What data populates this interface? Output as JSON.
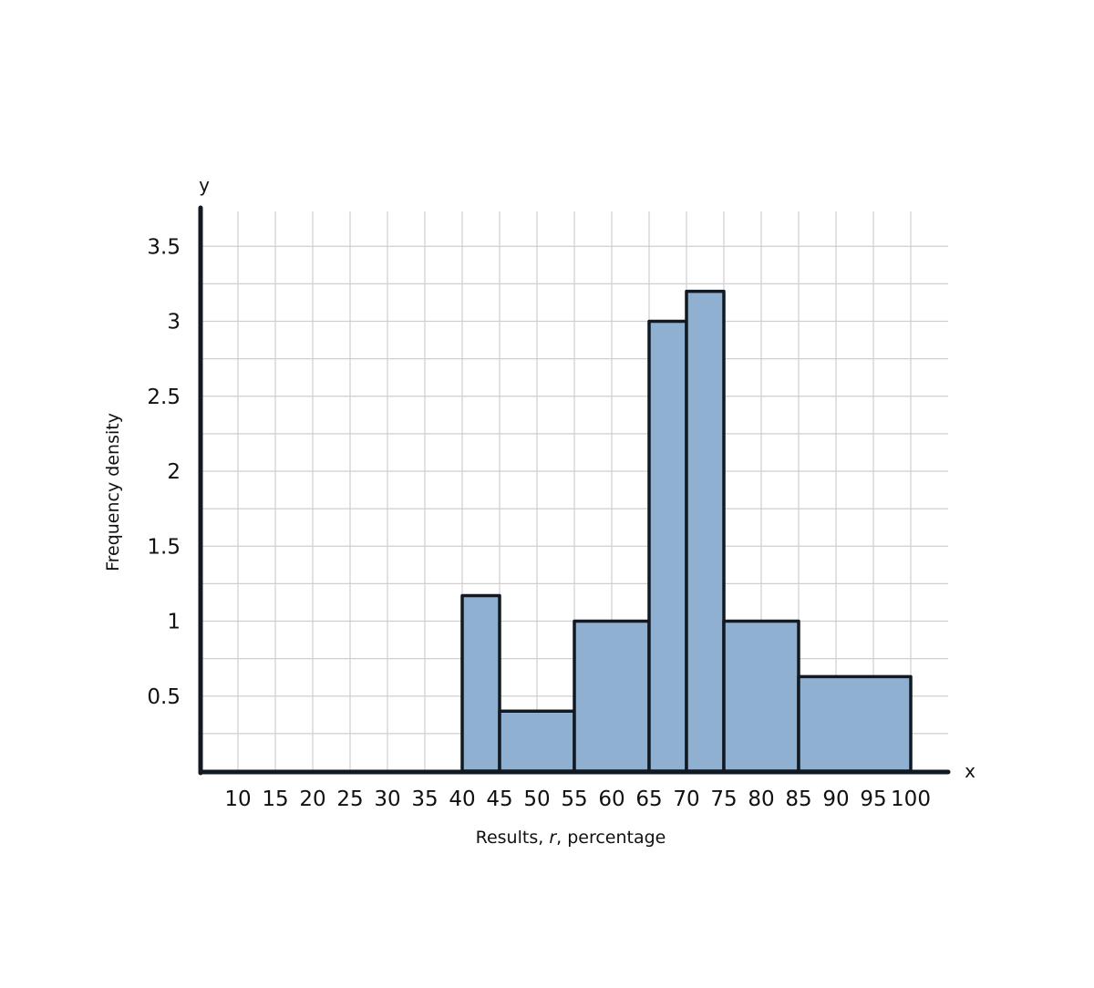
{
  "chart_data": {
    "type": "bar",
    "subtype": "histogram",
    "bins": [
      {
        "from": 40,
        "to": 45,
        "value": 1.17
      },
      {
        "from": 45,
        "to": 55,
        "value": 0.4
      },
      {
        "from": 55,
        "to": 65,
        "value": 1.0
      },
      {
        "from": 65,
        "to": 70,
        "value": 3.0
      },
      {
        "from": 70,
        "to": 75,
        "value": 3.2
      },
      {
        "from": 75,
        "to": 85,
        "value": 1.0
      },
      {
        "from": 85,
        "to": 100,
        "value": 0.63
      }
    ],
    "xlabel": {
      "prefix": "Results, ",
      "variable": "r",
      "suffix": ", percentage"
    },
    "ylabel": "Frequency density",
    "x_axis_letter": "x",
    "y_axis_letter": "y",
    "xlim": [
      5,
      105
    ],
    "ylim": [
      0,
      3.75
    ],
    "x_ticks": [
      10,
      15,
      20,
      25,
      30,
      35,
      40,
      45,
      50,
      55,
      60,
      65,
      70,
      75,
      80,
      85,
      90,
      95,
      100
    ],
    "y_ticks": [
      0.5,
      1,
      1.5,
      2,
      2.5,
      3,
      3.5
    ],
    "y_tick_labels": [
      "0.5",
      "1",
      "1.5",
      "2",
      "2.5",
      "3",
      "3.5"
    ],
    "grid": true,
    "bar_color": "#8fb0d0",
    "bar_edge_color": "#111a22",
    "axis_color": "#111a22",
    "grid_color": "#cfcfcf"
  }
}
